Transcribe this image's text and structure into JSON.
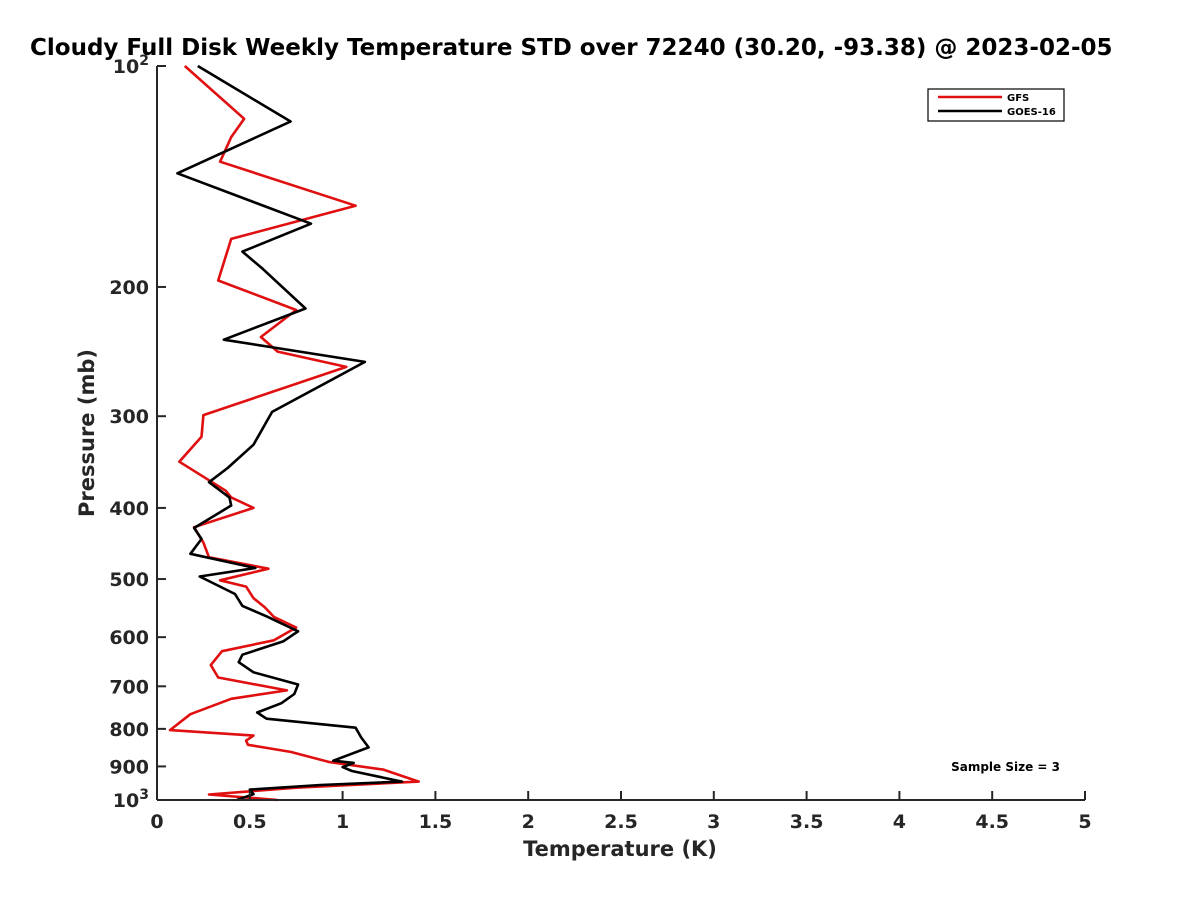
{
  "chart_data": {
    "type": "line",
    "title": "Cloudy Full Disk Weekly Temperature STD over 72240 (30.20, -93.38) @ 2023-02-05",
    "xlabel": "Temperature (K)",
    "ylabel": "Pressure (mb)",
    "xlim": [
      0,
      5
    ],
    "ylim": [
      100,
      1000
    ],
    "y_scale": "log",
    "y_reversed": true,
    "grid": false,
    "legend_position": "top-right",
    "x_ticks": [
      "0",
      "0.5",
      "1",
      "1.5",
      "2",
      "2.5",
      "3",
      "3.5",
      "4",
      "4.5",
      "5"
    ],
    "y_ticks": [
      {
        "value": 100,
        "base": "10",
        "exp": "2"
      },
      {
        "value": 200,
        "label": "200"
      },
      {
        "value": 300,
        "label": "300"
      },
      {
        "value": 400,
        "label": "400"
      },
      {
        "value": 500,
        "label": "500"
      },
      {
        "value": 600,
        "label": "600"
      },
      {
        "value": 700,
        "label": "700"
      },
      {
        "value": 800,
        "label": "800"
      },
      {
        "value": 900,
        "label": "900"
      },
      {
        "value": 1000,
        "base": "10",
        "exp": "3"
      }
    ],
    "series": [
      {
        "name": "GFS",
        "color": "#e01010",
        "points": [
          [
            0.15,
            100
          ],
          [
            0.47,
            118
          ],
          [
            0.4,
            125
          ],
          [
            0.34,
            135
          ],
          [
            1.07,
            155
          ],
          [
            0.4,
            172
          ],
          [
            0.33,
            196
          ],
          [
            0.75,
            215
          ],
          [
            0.56,
            234
          ],
          [
            0.65,
            245
          ],
          [
            1.02,
            257
          ],
          [
            0.25,
            299
          ],
          [
            0.24,
            320
          ],
          [
            0.12,
            346
          ],
          [
            0.37,
            379
          ],
          [
            0.4,
            387
          ],
          [
            0.52,
            400
          ],
          [
            0.2,
            425
          ],
          [
            0.25,
            446
          ],
          [
            0.28,
            467
          ],
          [
            0.6,
            484
          ],
          [
            0.34,
            502
          ],
          [
            0.48,
            512
          ],
          [
            0.52,
            531
          ],
          [
            0.58,
            546
          ],
          [
            0.63,
            563
          ],
          [
            0.75,
            582
          ],
          [
            0.63,
            606
          ],
          [
            0.35,
            627
          ],
          [
            0.29,
            655
          ],
          [
            0.33,
            681
          ],
          [
            0.7,
            709
          ],
          [
            0.4,
            728
          ],
          [
            0.18,
            764
          ],
          [
            0.07,
            803
          ],
          [
            0.52,
            817
          ],
          [
            0.48,
            830
          ],
          [
            0.49,
            841
          ],
          [
            0.72,
            860
          ],
          [
            0.93,
            888
          ],
          [
            1.22,
            909
          ],
          [
            1.41,
            944
          ],
          [
            0.75,
            962
          ],
          [
            0.28,
            983
          ],
          [
            0.65,
            1000
          ]
        ]
      },
      {
        "name": "GOES-16",
        "color": "#000000",
        "points": [
          [
            0.22,
            100
          ],
          [
            0.72,
            119
          ],
          [
            0.11,
            140
          ],
          [
            0.83,
            164
          ],
          [
            0.46,
            179
          ],
          [
            0.57,
            189
          ],
          [
            0.8,
            214
          ],
          [
            0.36,
            236
          ],
          [
            1.12,
            253
          ],
          [
            0.62,
            296
          ],
          [
            0.52,
            328
          ],
          [
            0.38,
            353
          ],
          [
            0.28,
            369
          ],
          [
            0.39,
            387
          ],
          [
            0.4,
            397
          ],
          [
            0.2,
            426
          ],
          [
            0.24,
            441
          ],
          [
            0.18,
            462
          ],
          [
            0.53,
            483
          ],
          [
            0.23,
            496
          ],
          [
            0.42,
            524
          ],
          [
            0.46,
            544
          ],
          [
            0.59,
            562
          ],
          [
            0.76,
            589
          ],
          [
            0.68,
            608
          ],
          [
            0.46,
            634
          ],
          [
            0.44,
            649
          ],
          [
            0.52,
            670
          ],
          [
            0.76,
            696
          ],
          [
            0.74,
            717
          ],
          [
            0.67,
            738
          ],
          [
            0.54,
            760
          ],
          [
            0.59,
            775
          ],
          [
            1.07,
            797
          ],
          [
            1.1,
            822
          ],
          [
            1.14,
            848
          ],
          [
            0.95,
            884
          ],
          [
            1.06,
            890
          ],
          [
            1.0,
            902
          ],
          [
            1.05,
            913
          ],
          [
            1.32,
            944
          ],
          [
            0.88,
            954
          ],
          [
            0.5,
            968
          ],
          [
            0.52,
            982
          ],
          [
            0.43,
            1000
          ]
        ]
      }
    ],
    "annotation": "Sample Size = 3"
  }
}
